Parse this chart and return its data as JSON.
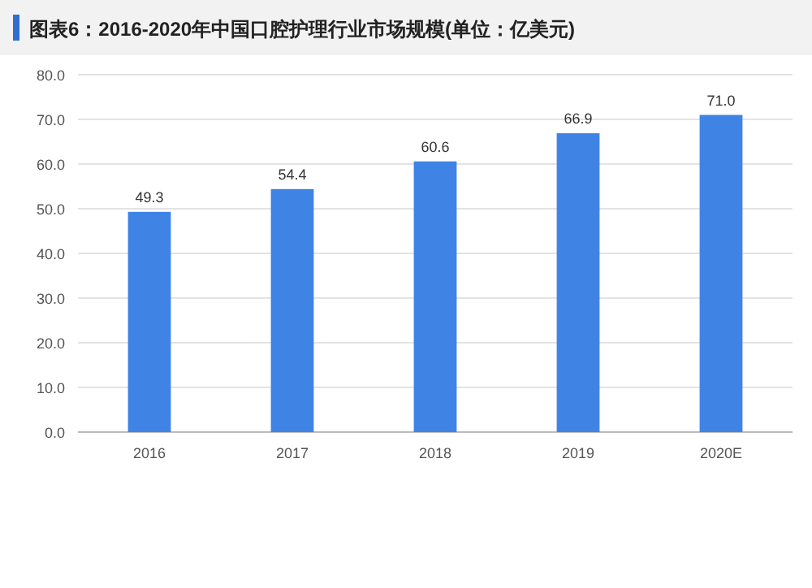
{
  "chart_data": {
    "type": "bar",
    "title": "图表6：2016-2020年中国口腔护理行业市场规模(单位：亿美元)",
    "categories": [
      "2016",
      "2017",
      "2018",
      "2019",
      "2020E"
    ],
    "values": [
      49.3,
      54.4,
      60.6,
      66.9,
      71.0
    ],
    "value_labels": [
      "49.3",
      "54.4",
      "60.6",
      "66.9",
      "71.0"
    ],
    "color": "#3f84e5",
    "ylim": [
      0,
      80
    ],
    "yticks": [
      {
        "value": 0,
        "label": "0.0"
      },
      {
        "value": 10,
        "label": "10.0"
      },
      {
        "value": 20,
        "label": "20.0"
      },
      {
        "value": 30,
        "label": "30.0"
      },
      {
        "value": 40,
        "label": "40.0"
      },
      {
        "value": 50,
        "label": "50.0"
      },
      {
        "value": 60,
        "label": "60.0"
      },
      {
        "value": 70,
        "label": "70.0"
      },
      {
        "value": 80,
        "label": "80.0"
      }
    ],
    "grid": "y"
  }
}
